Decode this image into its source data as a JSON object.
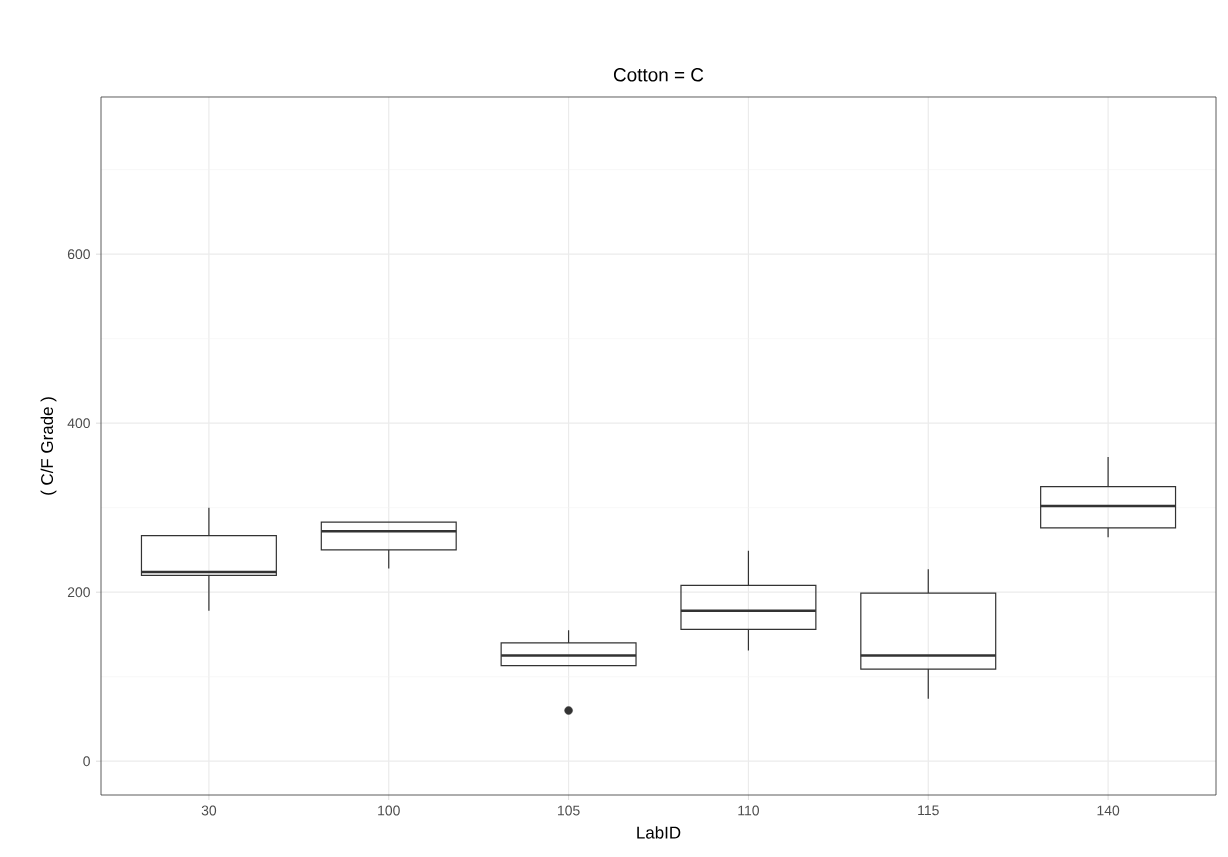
{
  "chart_data": {
    "type": "box",
    "title": "Cotton = C",
    "xlabel": "LabID",
    "ylabel": "( C/F Grade )",
    "categories": [
      "30",
      "100",
      "105",
      "110",
      "115",
      "140"
    ],
    "boxes": [
      {
        "low": 178,
        "q1": 220,
        "median": 224,
        "q3": 267,
        "high": 300
      },
      {
        "low": 228,
        "q1": 250,
        "median": 272,
        "q3": 283,
        "high": 283
      },
      {
        "low": 113,
        "q1": 113,
        "median": 125,
        "q3": 140,
        "high": 155,
        "outliers": [
          60
        ]
      },
      {
        "low": 131,
        "q1": 156,
        "median": 178,
        "q3": 208,
        "high": 249
      },
      {
        "low": 74,
        "q1": 109,
        "median": 125,
        "q3": 199,
        "high": 227
      },
      {
        "low": 265,
        "q1": 276,
        "median": 302,
        "q3": 325,
        "high": 360
      }
    ],
    "color": "#333333",
    "ylim": [
      -40,
      786
    ],
    "yticks": [
      0,
      200,
      400,
      600
    ],
    "grid": true
  }
}
